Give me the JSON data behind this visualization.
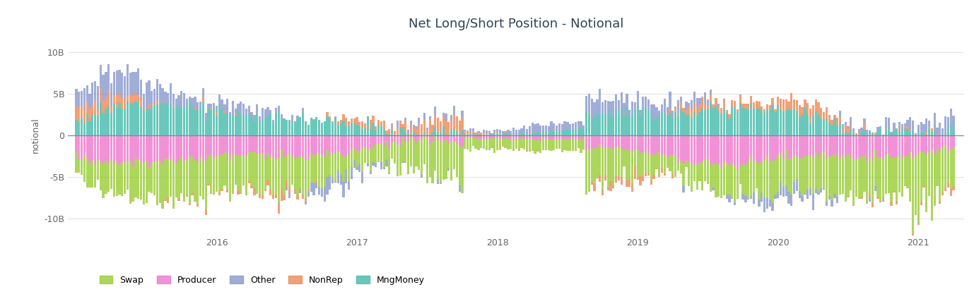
{
  "title": "Net Long/Short Position - Notional",
  "ylabel": "notional",
  "colors": {
    "Swap": "#99cc33",
    "Producer": "#ee77cc",
    "Other": "#8899cc",
    "NonRep": "#ee8855",
    "MngMoney": "#44bbaa"
  },
  "legend_labels": [
    "Swap",
    "Producer",
    "Other",
    "NonRep",
    "MngMoney"
  ],
  "ylim": [
    -12000000000,
    12000000000
  ],
  "yticks": [
    -10000000000,
    -5000000000,
    0,
    5000000000,
    10000000000
  ],
  "ytick_labels": [
    "-10B",
    "-5B",
    "0",
    "5B",
    "10B"
  ],
  "year_ticks": [
    2016,
    2017,
    2018,
    2019,
    2020,
    2021
  ],
  "year_start": 2015.0,
  "year_end": 2021.25,
  "n_bars": 326,
  "background_color": "#ffffff",
  "grid_color": "#e0e0e0",
  "title_color": "#334455",
  "axis_color": "#666666"
}
